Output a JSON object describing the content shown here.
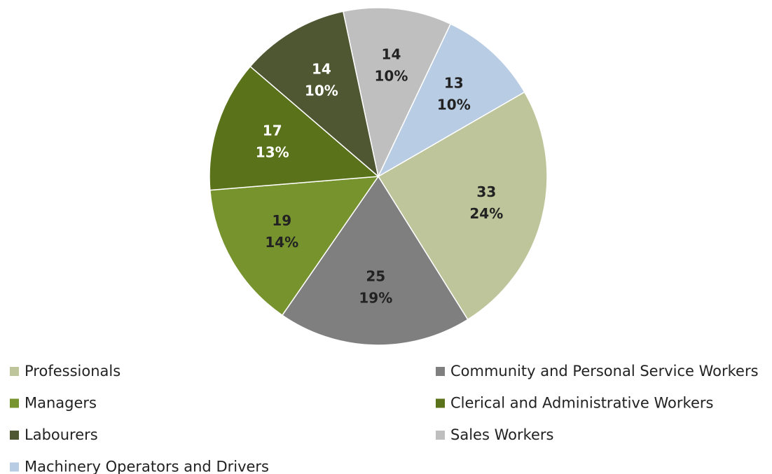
{
  "chart_data": {
    "type": "pie",
    "categories": [
      "Professionals",
      "Community and Personal Service Workers",
      "Managers",
      "Clerical and Administrative Workers",
      "Labourers",
      "Sales Workers",
      "Machinery Operators and Drivers"
    ],
    "values": [
      33,
      25,
      19,
      17,
      14,
      14,
      13
    ],
    "percent_labels": [
      "24%",
      "19%",
      "14%",
      "13%",
      "10%",
      "10%",
      "10%"
    ],
    "colors": [
      "#bfc59a",
      "#7f7f7f",
      "#77932e",
      "#5a7219",
      "#4f5732",
      "#bfbfbf",
      "#b8cce4"
    ],
    "legend": "bottom"
  }
}
